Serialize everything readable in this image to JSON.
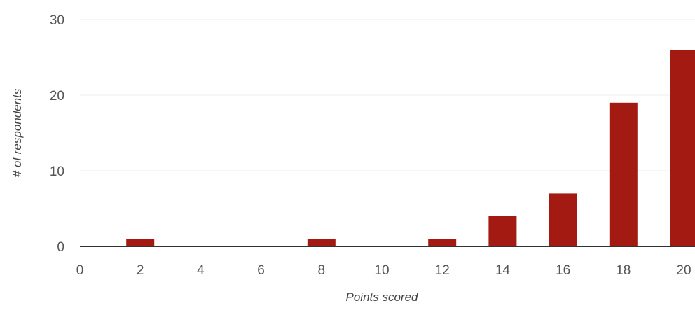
{
  "chart_data": {
    "type": "bar",
    "title": "",
    "xlabel": "Points scored",
    "ylabel": "# of respondents",
    "x": [
      2,
      8,
      12,
      14,
      16,
      18,
      20
    ],
    "values": [
      1,
      1,
      1,
      4,
      7,
      19,
      26
    ],
    "xlim": [
      0,
      20
    ],
    "ylim": [
      0,
      30
    ],
    "xticks": [
      "0",
      "2",
      "4",
      "6",
      "8",
      "10",
      "12",
      "14",
      "16",
      "18",
      "20"
    ],
    "yticks": [
      "0",
      "10",
      "20",
      "30"
    ],
    "grid": true,
    "legend": "none",
    "bar_color": "#a31a12",
    "grid_color": "#ececec",
    "axis_color": "#333333"
  }
}
